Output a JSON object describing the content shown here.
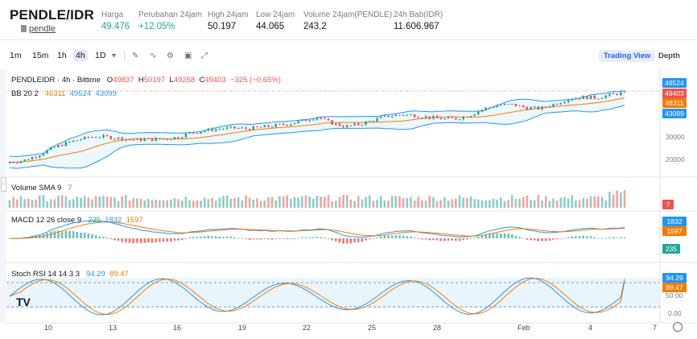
{
  "header": {
    "pair": "PENDLE/IDR",
    "coin_link": "pendle",
    "stats": [
      {
        "label": "Harga",
        "value": "49.476",
        "up": true
      },
      {
        "label": "Perubahan 24jam",
        "value": "+12.05%",
        "up": true
      },
      {
        "label": "High 24jam",
        "value": "50.197",
        "up": false
      },
      {
        "label": "Low 24jam",
        "value": "44.065",
        "up": false
      },
      {
        "label": "Volume 24jam(PENDLE)",
        "value": "243,2",
        "up": false
      },
      {
        "label": "24h Bab(IDR)",
        "value": "11.606.967",
        "up": false
      }
    ]
  },
  "toolbar": {
    "timeframes": [
      "1m",
      "15m",
      "1h",
      "4h",
      "1D"
    ],
    "active_timeframe": "4h",
    "trading_view_label": "Trading View",
    "depth_label": "Depth"
  },
  "legend": {
    "symbol": "PENDLEIDR · 4h · Bittime",
    "o_label": "O",
    "o": "49837",
    "h_label": "H",
    "h": "50197",
    "l_label": "L",
    "l": "49258",
    "c_label": "C",
    "c": "49403",
    "change": "−325 (−0.65%)",
    "bb_label": "BB 20 2",
    "bb_mid": "46311",
    "bb_upper": "49524",
    "bb_lower": "43099",
    "vol_label": "Volume SMA 9",
    "vol_value": "7",
    "macd_label": "MACD 12 26 close 9",
    "macd_hist": "235",
    "macd_line": "1832",
    "macd_signal": "1597",
    "stoch_label": "Stoch RSI 14 14 3 3",
    "stoch_k": "94.29",
    "stoch_d": "89.47"
  },
  "price_tags": {
    "upper": "49524",
    "close": "49403",
    "mid": "46311",
    "lower": "43099",
    "volume": "7",
    "macd_line": "1832",
    "macd_signal": "1597",
    "macd_hist": "235",
    "stoch_k": "94.29",
    "stoch_d": "89.47"
  },
  "axis": {
    "price_ticks": [
      "30000",
      "20000"
    ],
    "stoch_ticks": [
      "50.00",
      "0.00"
    ]
  },
  "dates": [
    "10",
    "13",
    "16",
    "19",
    "22",
    "25",
    "28",
    "Feb",
    "4",
    "7"
  ],
  "colors": {
    "up": "#26a69a",
    "down": "#ef5350",
    "bb_upper": "#2196f3",
    "bb_mid": "#f57c00",
    "accent": "#2962ff"
  },
  "chart_data": {
    "type": "candlestick",
    "title": "PENDLEIDR · 4h · Bittime",
    "x_labels": [
      "10",
      "13",
      "16",
      "19",
      "22",
      "25",
      "28",
      "Feb",
      "4",
      "7"
    ],
    "close_series": [
      18500,
      19200,
      21500,
      24500,
      26800,
      28500,
      29800,
      29600,
      28900,
      28300,
      28500,
      28700,
      29500,
      31500,
      32500,
      33200,
      33600,
      33300,
      33900,
      34600,
      35500,
      36800,
      38500,
      35800,
      34200,
      35200,
      37000,
      38800,
      39500,
      39200,
      38300,
      37600,
      37800,
      39500,
      42300,
      43800,
      43900,
      42500,
      42200,
      44300,
      46500,
      47200,
      47000,
      48300,
      49403
    ],
    "bb_mid_last": 46311,
    "bb_upper_last": 49524,
    "bb_lower_last": 43099,
    "y_ticks": [
      20000,
      30000
    ]
  }
}
